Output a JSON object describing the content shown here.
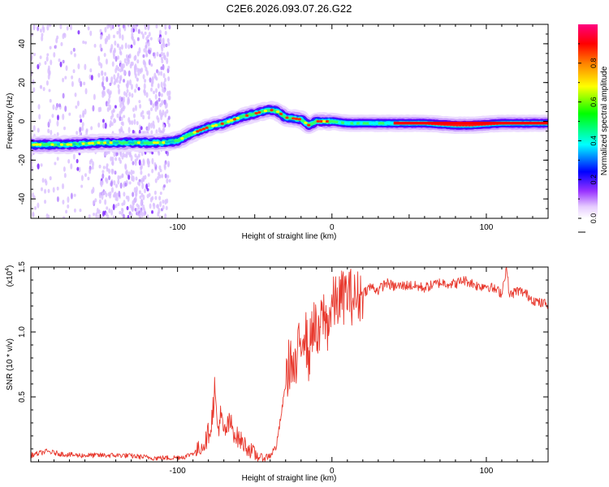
{
  "title": "C2E6.2026.093.07.26.G22",
  "chart_data": [
    {
      "type": "heatmap",
      "xlabel": "Height of straight line (km)",
      "ylabel": "Frequency (Hz)",
      "xlim": [
        -195,
        140
      ],
      "ylim": [
        -50,
        50
      ],
      "xticks": [
        -100,
        0,
        100
      ],
      "yticks": [
        -40,
        -20,
        0,
        20,
        40
      ],
      "ridge": [
        {
          "x": -195,
          "y": -12
        },
        {
          "x": -170,
          "y": -12
        },
        {
          "x": -150,
          "y": -11
        },
        {
          "x": -130,
          "y": -11
        },
        {
          "x": -110,
          "y": -11
        },
        {
          "x": -100,
          "y": -10
        },
        {
          "x": -90,
          "y": -6
        },
        {
          "x": -80,
          "y": -3
        },
        {
          "x": -70,
          "y": -1
        },
        {
          "x": -60,
          "y": 2
        },
        {
          "x": -50,
          "y": 4
        },
        {
          "x": -40,
          "y": 6
        },
        {
          "x": -35,
          "y": 5
        },
        {
          "x": -30,
          "y": 2
        },
        {
          "x": -20,
          "y": 1
        },
        {
          "x": -15,
          "y": -2
        },
        {
          "x": -10,
          "y": 0
        },
        {
          "x": 0,
          "y": 0
        },
        {
          "x": 10,
          "y": -1
        },
        {
          "x": 20,
          "y": -1
        },
        {
          "x": 40,
          "y": -1
        },
        {
          "x": 60,
          "y": -1
        },
        {
          "x": 80,
          "y": -2
        },
        {
          "x": 90,
          "y": -2
        },
        {
          "x": 110,
          "y": -1
        },
        {
          "x": 140,
          "y": -1
        }
      ],
      "colorbar": {
        "label": "Normalized spectral amplitude",
        "ticks": [
          0.0,
          0.2,
          0.4,
          0.6,
          0.8
        ],
        "tick_labels": [
          "0.0",
          "0.2",
          "0.4",
          "0.6",
          "0.8"
        ],
        "range": [
          0,
          1
        ],
        "colors": [
          "#ffffff",
          "#cc99ff",
          "#7f00ff",
          "#0000ff",
          "#00ffff",
          "#00ff00",
          "#ffff00",
          "#ff7f00",
          "#ff0000",
          "#ff007f"
        ]
      }
    },
    {
      "type": "line",
      "xlabel": "Height of straight line (km)",
      "ylabel": "SNR (10 * v/v)",
      "ylabel_multiplier": "(x10",
      "ylabel_multiplier_exp": "4",
      "ylabel_multiplier_close": ")",
      "xlim": [
        -195,
        140
      ],
      "ylim": [
        0,
        1.5
      ],
      "xticks": [
        -100,
        0,
        100
      ],
      "yticks": [
        0.5,
        1.0,
        1.5
      ],
      "ytick_labels": [
        "0.5",
        "1.0",
        "1.5"
      ],
      "series": [
        {
          "name": "SNR",
          "color": "#e8392e",
          "x": [
            -195,
            -185,
            -175,
            -165,
            -155,
            -145,
            -135,
            -125,
            -115,
            -105,
            -95,
            -88,
            -82,
            -78,
            -76,
            -74,
            -72,
            -70,
            -66,
            -62,
            -58,
            -52,
            -48,
            -44,
            -40,
            -36,
            -33,
            -30,
            -27,
            -24,
            -21,
            -18,
            -15,
            -12,
            -9,
            -6,
            -3,
            0,
            5,
            10,
            15,
            20,
            25,
            30,
            35,
            40,
            50,
            60,
            70,
            80,
            85,
            90,
            95,
            100,
            105,
            110,
            113,
            115,
            120,
            125,
            130,
            135,
            140
          ],
          "y": [
            0.05,
            0.08,
            0.06,
            0.05,
            0.05,
            0.05,
            0.05,
            0.04,
            0.03,
            0.03,
            0.04,
            0.08,
            0.15,
            0.3,
            0.55,
            0.25,
            0.35,
            0.22,
            0.3,
            0.2,
            0.15,
            0.08,
            0.04,
            0.03,
            0.05,
            0.12,
            0.35,
            0.6,
            0.8,
            0.65,
            0.9,
            1.05,
            0.8,
            1.1,
            0.9,
            1.15,
            1.05,
            1.2,
            1.25,
            1.3,
            1.25,
            1.3,
            1.35,
            1.32,
            1.38,
            1.35,
            1.36,
            1.34,
            1.38,
            1.37,
            1.4,
            1.38,
            1.35,
            1.36,
            1.33,
            1.3,
            1.5,
            1.28,
            1.32,
            1.3,
            1.25,
            1.22,
            1.22
          ]
        }
      ]
    }
  ]
}
